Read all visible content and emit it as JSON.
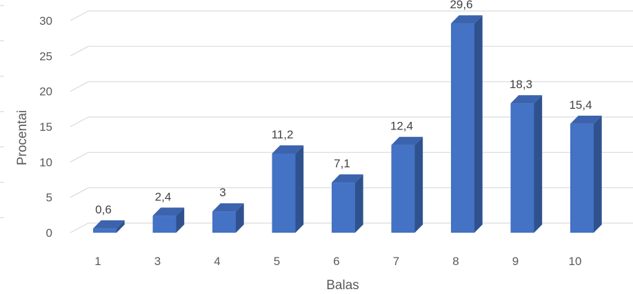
{
  "chart_data": {
    "type": "bar",
    "categories": [
      "1",
      "3",
      "4",
      "5",
      "6",
      "7",
      "8",
      "9",
      "10"
    ],
    "values": [
      0.6,
      2.4,
      3,
      11.2,
      7.1,
      12.4,
      29.6,
      18.3,
      15.4
    ],
    "value_labels": [
      "0,6",
      "2,4",
      "3",
      "11,2",
      "7,1",
      "12,4",
      "29,6",
      "18,3",
      "15,4"
    ],
    "y_ticks": [
      "0",
      "5",
      "10",
      "15",
      "20",
      "25",
      "30"
    ],
    "xlabel": "Balas",
    "ylabel": "Procentai",
    "ylim": [
      0,
      30
    ],
    "grid": true,
    "bar_color": "#4472C4",
    "bar_side_color": "#2F528F",
    "bar_top_color": "#3B63AE"
  }
}
